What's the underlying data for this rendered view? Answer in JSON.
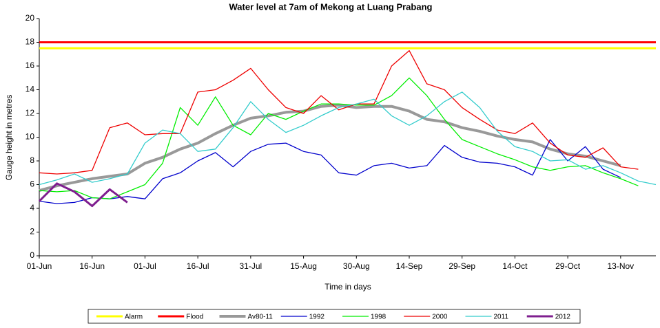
{
  "chart_data": {
    "type": "line",
    "title": "Water level at 7am of Mekong at Luang Prabang",
    "x_label": "Time in days",
    "y_label": "Gauge height in metres",
    "x": [
      0,
      5,
      10,
      15,
      20,
      25,
      30,
      35,
      40,
      45,
      50,
      55,
      60,
      65,
      70,
      75,
      80,
      85,
      90,
      95,
      100,
      105,
      110,
      115,
      120,
      125,
      130,
      135,
      140,
      145,
      150,
      155,
      160,
      165,
      170,
      175
    ],
    "xlim": [
      0,
      175
    ],
    "xticks": [
      {
        "value": 0,
        "label": "01-Jun"
      },
      {
        "value": 15,
        "label": "16-Jun"
      },
      {
        "value": 30,
        "label": "01-Jul"
      },
      {
        "value": 45,
        "label": "16-Jul"
      },
      {
        "value": 60,
        "label": "31-Jul"
      },
      {
        "value": 75,
        "label": "15-Aug"
      },
      {
        "value": 90,
        "label": "30-Aug"
      },
      {
        "value": 105,
        "label": "14-Sep"
      },
      {
        "value": 120,
        "label": "29-Sep"
      },
      {
        "value": 135,
        "label": "14-Oct"
      },
      {
        "value": 150,
        "label": "29-Oct"
      },
      {
        "value": 165,
        "label": "13-Nov"
      }
    ],
    "ylim": [
      0,
      20
    ],
    "yticks": [
      0,
      2,
      4,
      6,
      8,
      10,
      12,
      14,
      16,
      18,
      20
    ],
    "grid": false,
    "legend": "bottom",
    "series": [
      {
        "name": "Alarm",
        "color": "#ffff00",
        "width": 3,
        "values": [
          17.5,
          17.5,
          17.5,
          17.5,
          17.5,
          17.5,
          17.5,
          17.5,
          17.5,
          17.5,
          17.5,
          17.5,
          17.5,
          17.5,
          17.5,
          17.5,
          17.5,
          17.5,
          17.5,
          17.5,
          17.5,
          17.5,
          17.5,
          17.5,
          17.5,
          17.5,
          17.5,
          17.5,
          17.5,
          17.5,
          17.5,
          17.5,
          17.5,
          17.5,
          17.5,
          17.5
        ]
      },
      {
        "name": "Flood",
        "color": "#ff0000",
        "width": 3,
        "values": [
          18,
          18,
          18,
          18,
          18,
          18,
          18,
          18,
          18,
          18,
          18,
          18,
          18,
          18,
          18,
          18,
          18,
          18,
          18,
          18,
          18,
          18,
          18,
          18,
          18,
          18,
          18,
          18,
          18,
          18,
          18,
          18,
          18,
          18,
          18,
          18
        ]
      },
      {
        "name": "Av80-11",
        "color": "#999999",
        "width": 4,
        "values": [
          5.5,
          5.9,
          6.2,
          6.5,
          6.7,
          6.9,
          7.8,
          8.3,
          9.0,
          9.5,
          10.3,
          11.0,
          11.6,
          11.8,
          12.1,
          12.2,
          12.6,
          12.7,
          12.5,
          12.6,
          12.6,
          12.2,
          11.5,
          11.3,
          10.8,
          10.5,
          10.1,
          9.8,
          9.6,
          9.0,
          8.6,
          8.4,
          8.0,
          7.6,
          null,
          null
        ]
      },
      {
        "name": "1992",
        "color": "#0000cc",
        "width": 1.3,
        "values": [
          4.6,
          4.4,
          4.5,
          4.9,
          4.8,
          5.0,
          4.8,
          6.5,
          7.0,
          8.0,
          8.7,
          7.5,
          8.8,
          9.4,
          9.5,
          8.8,
          8.5,
          7.0,
          6.8,
          7.6,
          7.8,
          7.4,
          7.6,
          9.3,
          8.3,
          7.9,
          7.8,
          7.5,
          6.8,
          9.8,
          8.0,
          9.2,
          7.3,
          6.6,
          null,
          null
        ]
      },
      {
        "name": "1998",
        "color": "#00ee00",
        "width": 1.3,
        "values": [
          5.5,
          5.4,
          5.5,
          4.9,
          4.8,
          5.4,
          6.0,
          7.8,
          12.5,
          11.0,
          13.4,
          11.0,
          10.2,
          12.0,
          11.5,
          12.2,
          12.8,
          12.8,
          12.7,
          12.7,
          13.5,
          15.0,
          13.5,
          11.5,
          9.8,
          9.2,
          8.6,
          8.1,
          7.5,
          7.2,
          7.5,
          7.6,
          7.0,
          6.5,
          5.9,
          null
        ]
      },
      {
        "name": "2000",
        "color": "#ee0000",
        "width": 1.3,
        "values": [
          7.0,
          6.9,
          7.0,
          7.2,
          10.8,
          11.2,
          10.2,
          10.3,
          10.3,
          13.8,
          14.0,
          14.8,
          15.8,
          14.0,
          12.5,
          12.0,
          13.5,
          12.3,
          12.8,
          12.8,
          16.0,
          17.3,
          14.5,
          14.0,
          12.5,
          11.5,
          10.6,
          10.3,
          11.2,
          9.5,
          8.5,
          8.3,
          9.1,
          7.5,
          7.3,
          null
        ]
      },
      {
        "name": "2011",
        "color": "#33cccc",
        "width": 1.3,
        "values": [
          6.0,
          6.4,
          6.9,
          6.2,
          6.5,
          6.9,
          9.5,
          10.6,
          10.3,
          8.8,
          9.0,
          10.8,
          13.0,
          11.5,
          10.4,
          11.0,
          11.8,
          12.5,
          12.8,
          13.2,
          11.8,
          11.0,
          11.8,
          13.0,
          13.8,
          12.5,
          10.5,
          9.2,
          8.8,
          8.0,
          8.1,
          7.3,
          7.6,
          7.0,
          6.3,
          6.0
        ]
      },
      {
        "name": "2012",
        "color": "#7f1f8f",
        "width": 3,
        "values": [
          4.6,
          6.1,
          5.4,
          4.2,
          5.6,
          4.5,
          null,
          null,
          null,
          null,
          null,
          null,
          null,
          null,
          null,
          null,
          null,
          null,
          null,
          null,
          null,
          null,
          null,
          null,
          null,
          null,
          null,
          null,
          null,
          null,
          null,
          null,
          null,
          null,
          null,
          null
        ]
      }
    ]
  }
}
